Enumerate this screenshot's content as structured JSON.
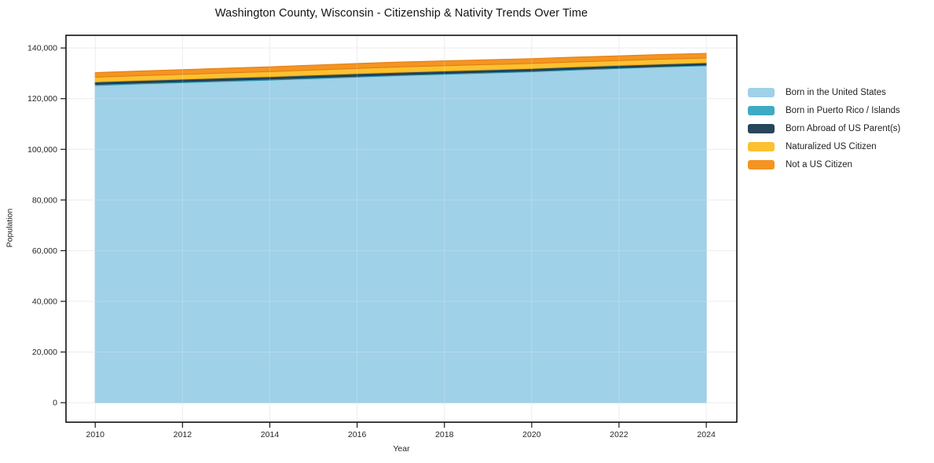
{
  "title": "Washington County, Wisconsin - Citizenship & Nativity Trends Over Time",
  "chart_data": {
    "type": "area",
    "stacked": true,
    "title": "Washington County, Wisconsin - Citizenship & Nativity Trends Over Time",
    "xlabel": "Year",
    "ylabel": "Population",
    "grid": true,
    "legend_position": "right-outside",
    "x": [
      2010,
      2011,
      2012,
      2013,
      2014,
      2015,
      2016,
      2017,
      2018,
      2019,
      2020,
      2021,
      2022,
      2023,
      2024
    ],
    "xticks": [
      2010,
      2012,
      2014,
      2016,
      2018,
      2020,
      2022,
      2024
    ],
    "ytick_values": [
      0,
      20000,
      40000,
      60000,
      80000,
      100000,
      120000,
      140000
    ],
    "ytick_labels": [
      "0",
      "20,000",
      "40,000",
      "60,000",
      "80,000",
      "100,000",
      "120,000",
      "140,000"
    ],
    "xlim": [
      2009.33,
      2024.7
    ],
    "ylim": [
      -7700,
      145000
    ],
    "series": [
      {
        "name": "Born in the United States",
        "color": "#9fd1e8",
        "edge": "#8ac2dc",
        "values": [
          125200,
          125800,
          126300,
          126800,
          127300,
          127900,
          128500,
          129100,
          129600,
          130100,
          130600,
          131300,
          131900,
          132500,
          133000
        ]
      },
      {
        "name": "Born in Puerto Rico / Islands",
        "color": "#3eaac4",
        "edge": "#2d91a9",
        "values": [
          450,
          440,
          430,
          420,
          410,
          400,
          400,
          390,
          380,
          370,
          360,
          350,
          330,
          320,
          310
        ]
      },
      {
        "name": "Born Abroad of US Parent(s)",
        "color": "#26465a",
        "edge": "#1b3547",
        "values": [
          930,
          930,
          940,
          950,
          960,
          950,
          940,
          930,
          920,
          910,
          900,
          880,
          870,
          850,
          840
        ]
      },
      {
        "name": "Naturalized US Citizen",
        "color": "#fcc130",
        "edge": "#e5a91c",
        "values": [
          1850,
          1880,
          1900,
          1950,
          2000,
          2050,
          2100,
          2120,
          2100,
          2060,
          2020,
          1980,
          1940,
          1900,
          1870
        ]
      },
      {
        "name": "Not a US Citizen",
        "color": "#f59422",
        "edge": "#dd7e10",
        "values": [
          1860,
          1870,
          1890,
          1900,
          1910,
          1920,
          1930,
          1940,
          1930,
          1920,
          1910,
          1900,
          1890,
          1870,
          1860
        ]
      }
    ],
    "axis_colors": {
      "frame": "#000000",
      "grid": "#e8e8e8",
      "tick": "#1a1a1a",
      "label": "#262626"
    }
  }
}
